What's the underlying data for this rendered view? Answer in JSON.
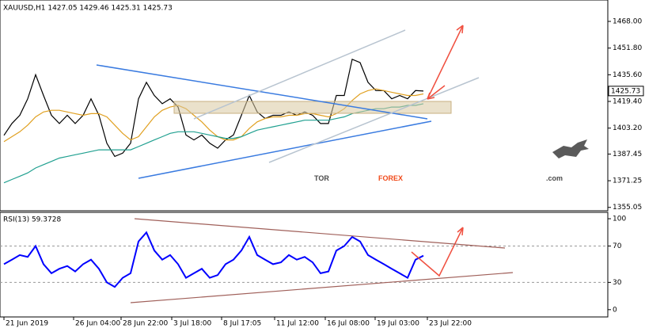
{
  "chart_data": [
    {
      "type": "line",
      "title": "XAUUSD,H1  1427.05 1429.46 1425.31 1425.73",
      "x": [
        0,
        1,
        2,
        3,
        4,
        5,
        6,
        7,
        8,
        9,
        10,
        11,
        12,
        13,
        14,
        15,
        16,
        17,
        18,
        19,
        20,
        21,
        22,
        23,
        24,
        25,
        26,
        27,
        28,
        29,
        30,
        31,
        32,
        33,
        34,
        35,
        36,
        37,
        38,
        39,
        40,
        41,
        42,
        43,
        44,
        45,
        46,
        47,
        48,
        49,
        50,
        51,
        52,
        53
      ],
      "xlim": [
        -0.5,
        76.3
      ],
      "ylim": [
        1353,
        1481
      ],
      "yticks": [
        {
          "value": 1468,
          "label": "1468.00"
        },
        {
          "value": 1451.8,
          "label": "1451.80"
        },
        {
          "value": 1435.6,
          "label": "1435.60"
        },
        {
          "value": 1419.4,
          "label": "1419.40"
        },
        {
          "value": 1403.2,
          "label": "1403.20"
        },
        {
          "value": 1387.45,
          "label": "1387.45"
        },
        {
          "value": 1371.25,
          "label": "1371.25"
        },
        {
          "value": 1355.05,
          "label": "1355.05"
        }
      ],
      "series": [
        {
          "color": "#000000",
          "values": [
            1398.8,
            1406,
            1411,
            1421,
            1435.6,
            1423,
            1411,
            1406,
            1411,
            1406,
            1411,
            1421,
            1411,
            1394,
            1386,
            1388,
            1394,
            1421,
            1431,
            1423,
            1418,
            1421,
            1416,
            1399,
            1396,
            1399,
            1394,
            1391,
            1396,
            1399,
            1411,
            1423,
            1413,
            1409,
            1411,
            1411,
            1413,
            1411,
            1413,
            1411,
            1406,
            1406,
            1423,
            1423,
            1445,
            1443,
            1431,
            1426,
            1426,
            1421,
            1423,
            1421,
            1426,
            1425.73
          ]
        },
        {
          "color": "#e0a020",
          "values": [
            1395,
            1398,
            1401,
            1405,
            1410,
            1413,
            1414,
            1414,
            1413,
            1412,
            1411,
            1412,
            1412,
            1410,
            1405,
            1400,
            1396,
            1398,
            1404,
            1410,
            1414,
            1416,
            1417,
            1415,
            1411,
            1407,
            1402,
            1398,
            1396,
            1396,
            1398,
            1403,
            1407,
            1409,
            1410,
            1410,
            1411,
            1411,
            1412,
            1412,
            1411,
            1410,
            1412,
            1415,
            1420,
            1424,
            1426,
            1427,
            1426,
            1425,
            1424,
            1423,
            1423,
            1424
          ]
        },
        {
          "color": "#20a090",
          "values": [
            1370,
            1372,
            1374,
            1376,
            1379,
            1381,
            1383,
            1385,
            1386,
            1387,
            1388,
            1389,
            1390,
            1390,
            1390,
            1390,
            1390,
            1392,
            1394,
            1396,
            1398,
            1400,
            1401,
            1401,
            1401,
            1400,
            1399,
            1398,
            1397,
            1397,
            1398,
            1400,
            1402,
            1403,
            1404,
            1405,
            1406,
            1407,
            1408,
            1408,
            1408,
            1408,
            1409,
            1410,
            1412,
            1413,
            1414,
            1415,
            1415,
            1416,
            1416,
            1417,
            1417,
            1418
          ]
        }
      ]
    },
    {
      "type": "line",
      "title": "RSI(13) 59.3728",
      "x": [
        0,
        1,
        2,
        3,
        4,
        5,
        6,
        7,
        8,
        9,
        10,
        11,
        12,
        13,
        14,
        15,
        16,
        17,
        18,
        19,
        20,
        21,
        22,
        23,
        24,
        25,
        26,
        27,
        28,
        29,
        30,
        31,
        32,
        33,
        34,
        35,
        36,
        37,
        38,
        39,
        40,
        41,
        42,
        43,
        44,
        45,
        46,
        47,
        48,
        49,
        50,
        51,
        52,
        53
      ],
      "xlim": [
        -0.5,
        76.3
      ],
      "xticks": [
        {
          "value": 0,
          "label": "21 Jun 2019"
        },
        {
          "value": 8.8,
          "label": "26 Jun 04:00"
        },
        {
          "value": 14.8,
          "label": "28 Jun 22:00"
        },
        {
          "value": 21.2,
          "label": "3 Jul 18:00"
        },
        {
          "value": 27.5,
          "label": "8 Jul 17:05"
        },
        {
          "value": 34.2,
          "label": "11 Jul 12:00"
        },
        {
          "value": 40.6,
          "label": "16 Jul 08:00"
        },
        {
          "value": 46.9,
          "label": "19 Jul 03:00"
        },
        {
          "value": 53.5,
          "label": "23 Jul 22:00"
        }
      ],
      "ylim": [
        -8,
        107
      ],
      "yticks": [
        100,
        70,
        30,
        0
      ],
      "levels": [
        70,
        30
      ],
      "series": [
        {
          "color": "#0000ff",
          "values": [
            50,
            55,
            60,
            58,
            70,
            50,
            40,
            45,
            48,
            42,
            50,
            55,
            45,
            30,
            25,
            35,
            40,
            75,
            85,
            65,
            55,
            60,
            50,
            35,
            40,
            45,
            35,
            38,
            50,
            55,
            65,
            80,
            60,
            55,
            50,
            52,
            60,
            55,
            58,
            52,
            40,
            42,
            65,
            70,
            80,
            75,
            60,
            55,
            50,
            45,
            40,
            35,
            55,
            59.3728
          ]
        }
      ]
    }
  ],
  "watermark": {
    "tor": "TOR",
    "forex": "FOREX",
    "com": ".com"
  }
}
